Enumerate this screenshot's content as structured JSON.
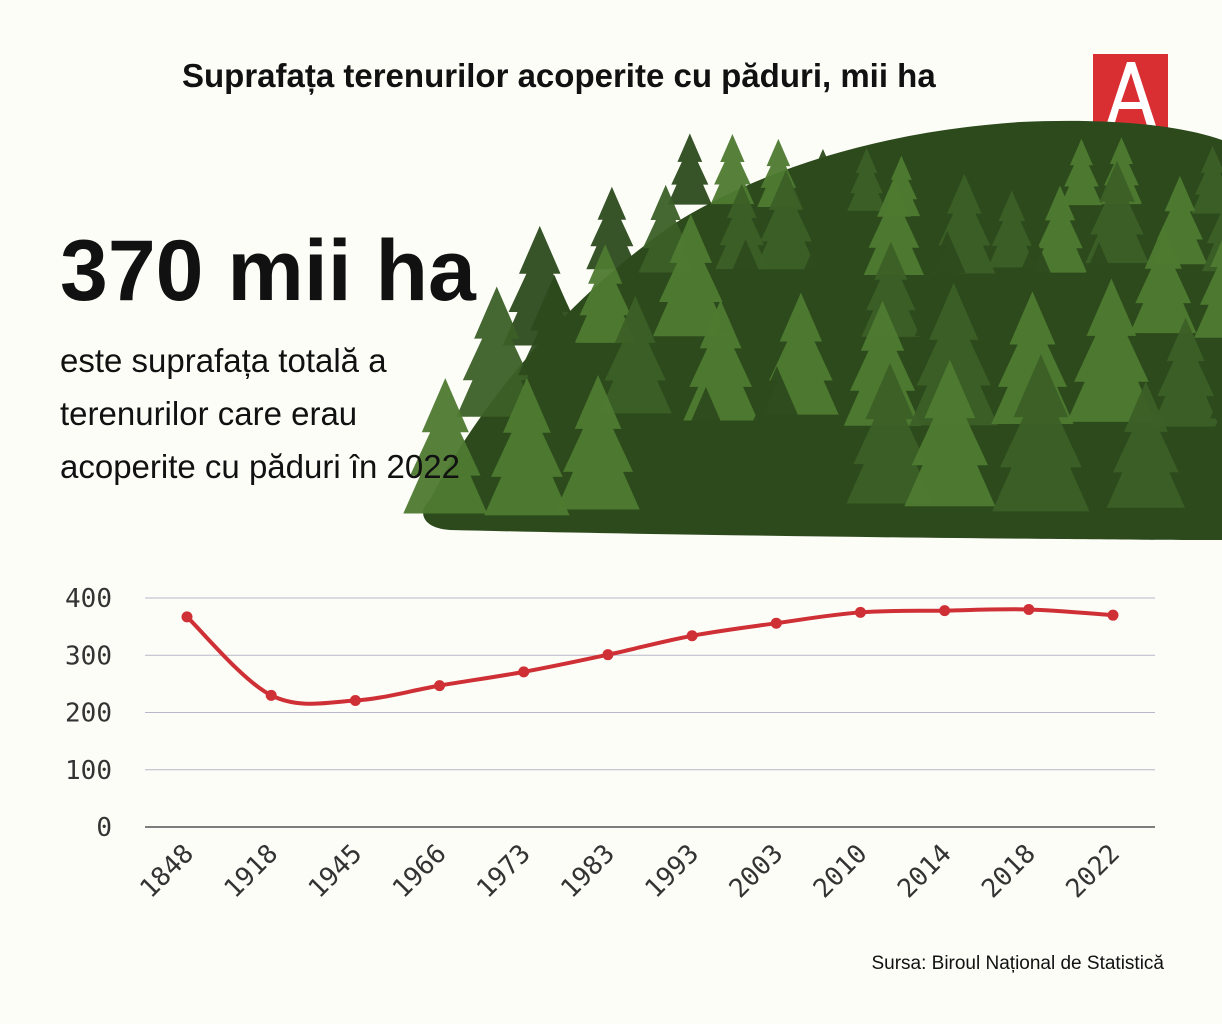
{
  "header": {
    "title": "Suprafața terenurilor acoperite cu păduri, mii ha"
  },
  "logo": {
    "icon": "letter-a-logo",
    "color": "#d92f33"
  },
  "highlight": {
    "value": "370 mii ha",
    "description": "este suprafața totală a terenurilor care erau acoperite cu păduri în 2022"
  },
  "colors": {
    "line": "#cf3036",
    "forest_dark": "#2c4a1c",
    "forest_mid": "#3b5f26",
    "forest_light": "#4e7a30",
    "grid": "#b8b8c8"
  },
  "chart_data": {
    "type": "line",
    "title": "Suprafața terenurilor acoperite cu păduri, mii ha",
    "categories": [
      "1848",
      "1918",
      "1945",
      "1966",
      "1973",
      "1983",
      "1993",
      "2003",
      "2010",
      "2014",
      "2018",
      "2022"
    ],
    "series": [
      {
        "values": [
          367,
          230,
          221,
          247,
          271,
          301,
          334,
          356,
          375,
          378,
          380,
          370
        ]
      }
    ],
    "ylim": [
      0,
      400
    ],
    "yticks": [
      0,
      100,
      200,
      300,
      400
    ],
    "grid": true,
    "smooth": true,
    "xlabel": "",
    "ylabel": ""
  },
  "footer": {
    "source": "Sursa: Biroul Național de Statistică"
  }
}
